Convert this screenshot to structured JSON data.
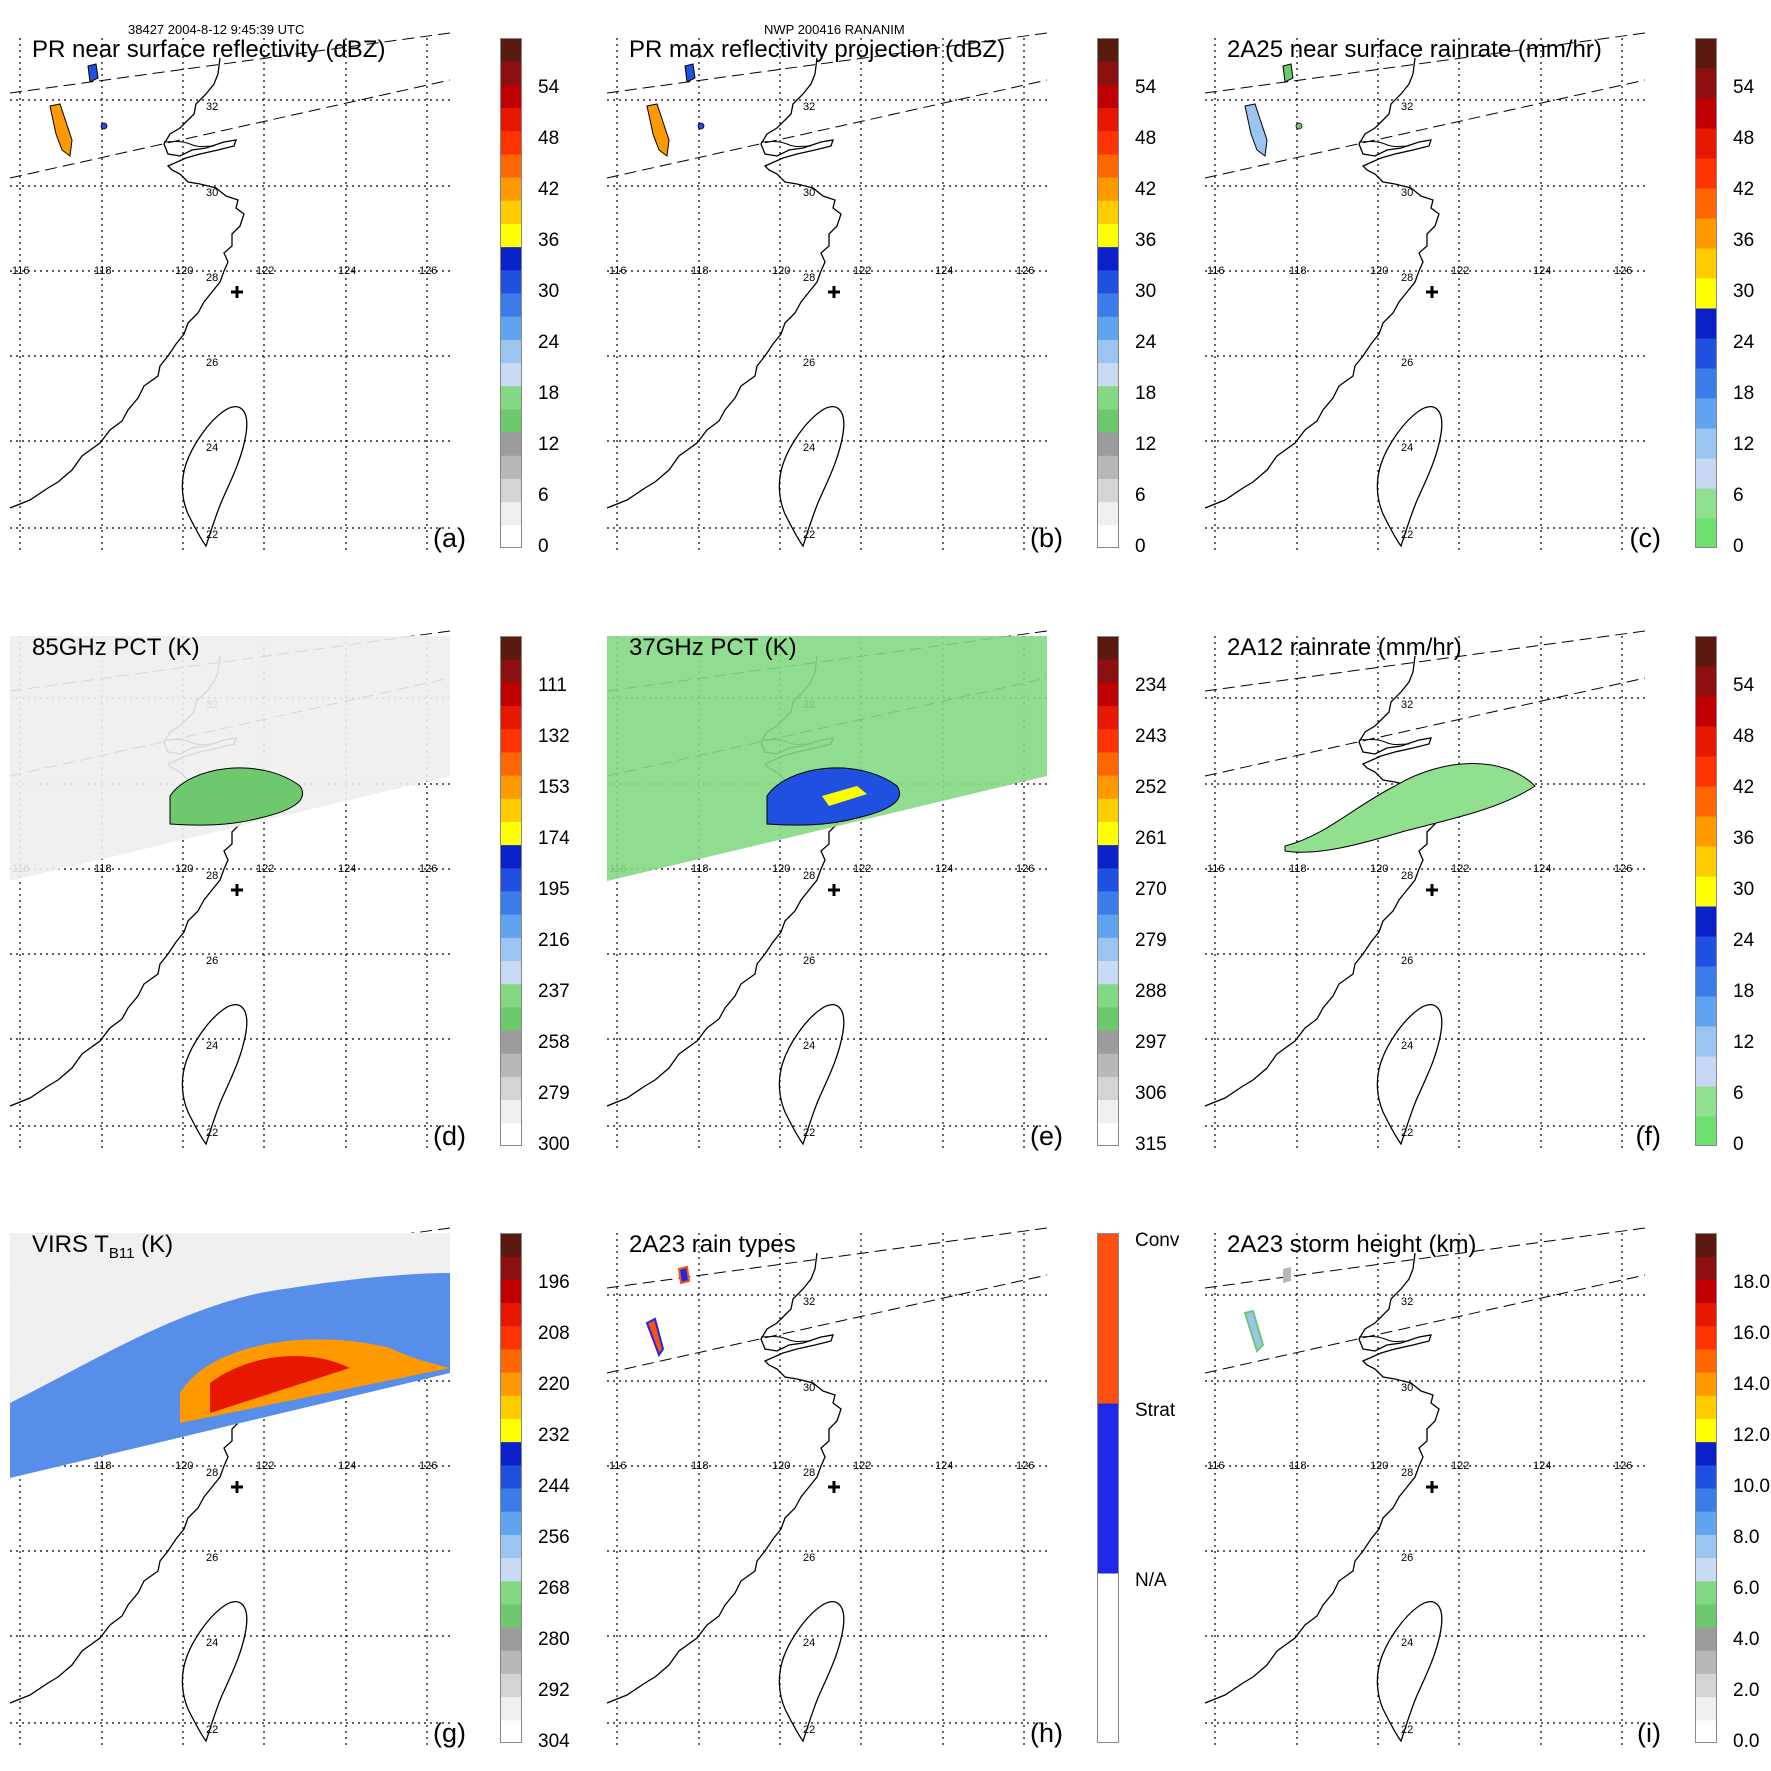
{
  "header": {
    "left": "38427 2004-8-12 9:45:39 UTC",
    "center": "NWP 200416 RANANIM"
  },
  "map": {
    "lon_labels": [
      "116",
      "118",
      "120",
      "122",
      "124",
      "126"
    ],
    "lat_labels": [
      "32",
      "30",
      "28",
      "26",
      "24",
      "22"
    ]
  },
  "panels": [
    {
      "id": "a",
      "title": "PR near surface reflectivity (dBZ)",
      "label": "(a)",
      "colorbar": {
        "type": "dbz",
        "ticks": [
          "54",
          "48",
          "42",
          "36",
          "30",
          "24",
          "18",
          "12",
          "6",
          "0"
        ]
      }
    },
    {
      "id": "b",
      "title": "PR max reflectivity projection (dBZ)",
      "label": "(b)",
      "colorbar": {
        "type": "dbz",
        "ticks": [
          "54",
          "48",
          "42",
          "36",
          "30",
          "24",
          "18",
          "12",
          "6",
          "0"
        ]
      }
    },
    {
      "id": "c",
      "title": "2A25 near surface rainrate (mm/hr)",
      "label": "(c)",
      "colorbar": {
        "type": "rain",
        "ticks": [
          "54",
          "48",
          "42",
          "36",
          "30",
          "24",
          "18",
          "12",
          "6",
          "0"
        ]
      }
    },
    {
      "id": "d",
      "title": "85GHz PCT (K)",
      "label": "(d)",
      "colorbar": {
        "type": "temp",
        "ticks": [
          "111",
          "132",
          "153",
          "174",
          "195",
          "216",
          "237",
          "258",
          "279",
          "300"
        ]
      }
    },
    {
      "id": "e",
      "title": "37GHz PCT (K)",
      "label": "(e)",
      "colorbar": {
        "type": "temp",
        "ticks": [
          "234",
          "243",
          "252",
          "261",
          "270",
          "279",
          "288",
          "297",
          "306",
          "315"
        ]
      }
    },
    {
      "id": "f",
      "title": "2A12 rainrate (mm/hr)",
      "label": "(f)",
      "colorbar": {
        "type": "rain",
        "ticks": [
          "54",
          "48",
          "42",
          "36",
          "30",
          "24",
          "18",
          "12",
          "6",
          "0"
        ]
      }
    },
    {
      "id": "g",
      "title_main": "VIRS T",
      "title_sub": "B11",
      "title_tail": " (K)",
      "label": "(g)",
      "colorbar": {
        "type": "temp",
        "ticks": [
          "196",
          "208",
          "220",
          "232",
          "244",
          "256",
          "268",
          "280",
          "292",
          "304"
        ]
      }
    },
    {
      "id": "h",
      "title": "2A23 rain types",
      "label": "(h)",
      "colorbar": {
        "type": "types",
        "ticks": [
          "Conv",
          "Strat",
          "N/A"
        ]
      }
    },
    {
      "id": "i",
      "title": "2A23 storm height (km)",
      "label": "(i)",
      "colorbar": {
        "type": "height",
        "ticks": [
          "18.0",
          "16.0",
          "14.0",
          "12.0",
          "10.0",
          "8.0",
          "6.0",
          "4.0",
          "2.0",
          "0.0"
        ]
      }
    }
  ],
  "colors": {
    "dbz": [
      "#ffffff",
      "#f0f0f0",
      "#d4d4d4",
      "#b8b8b8",
      "#9c9c9c",
      "#6ec86e",
      "#84d884",
      "#c8daf4",
      "#9cc4f0",
      "#60a4f0",
      "#3c7ce8",
      "#2050e0",
      "#0a20c8",
      "#ffff00",
      "#ffcc00",
      "#ff9900",
      "#ff6600",
      "#ff3300",
      "#e81800",
      "#c00000",
      "#8c1010",
      "#5a1a10"
    ],
    "rain": [
      "#6ee070",
      "#90e090",
      "#c8d8f4",
      "#9cc4f0",
      "#60a4f0",
      "#3c7ce8",
      "#2050e0",
      "#0a20c8",
      "#ffff00",
      "#ffcc00",
      "#ff9900",
      "#ff6600",
      "#ff3300",
      "#e81800",
      "#c00000",
      "#8c1010",
      "#5a1a10"
    ],
    "temp": [
      "#ffffff",
      "#f0f0f0",
      "#d4d4d4",
      "#b8b8b8",
      "#9c9c9c",
      "#6ec86e",
      "#84d884",
      "#c8daf4",
      "#9cc4f0",
      "#60a4f0",
      "#3c7ce8",
      "#2050e0",
      "#0a20c8",
      "#ffff00",
      "#ffcc00",
      "#ff9900",
      "#ff6600",
      "#ff3300",
      "#e81800",
      "#c00000",
      "#8c1010",
      "#5a1a10"
    ],
    "types": [
      "#ffffff",
      "#1e28e6",
      "#ff5010"
    ],
    "height": [
      "#ffffff",
      "#f0f0f0",
      "#d4d4d4",
      "#b8b8b8",
      "#9c9c9c",
      "#6ec86e",
      "#84d884",
      "#c8daf4",
      "#9cc4f0",
      "#60a4f0",
      "#3c7ce8",
      "#2050e0",
      "#0a20c8",
      "#ffff00",
      "#ffcc00",
      "#ff9900",
      "#ff6600",
      "#ff3300",
      "#e81800",
      "#c00000",
      "#8c1010",
      "#5a1a10"
    ]
  }
}
